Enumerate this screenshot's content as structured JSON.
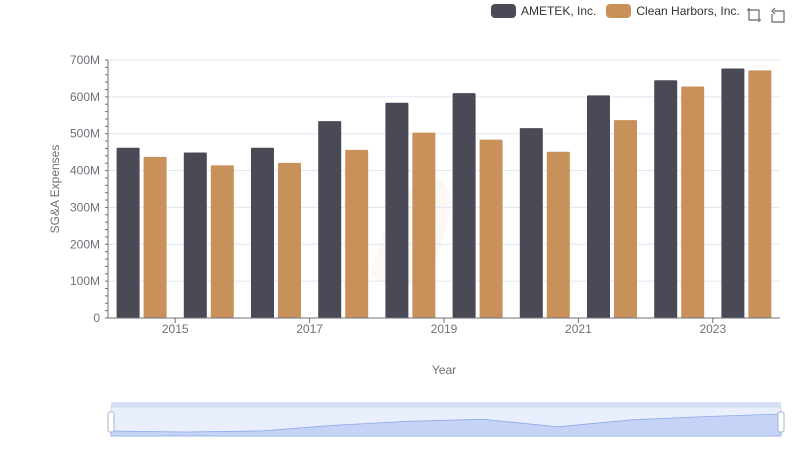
{
  "legend": {
    "items": [
      {
        "label": "AMETEK, Inc.",
        "color": "#4a4a57"
      },
      {
        "label": "Clean Harbors, Inc.",
        "color": "#c8915a"
      }
    ]
  },
  "toolbox": {
    "icons": [
      "zoom-icon",
      "restore-icon"
    ]
  },
  "chart_data": {
    "type": "bar",
    "title": "",
    "xlabel": "Year",
    "ylabel": "SG&A Expenses",
    "categories": [
      "2014",
      "2015",
      "2016",
      "2017",
      "2018",
      "2019",
      "2020",
      "2021",
      "2022",
      "2023"
    ],
    "x_tick_labels": [
      "2015",
      "2017",
      "2019",
      "2021",
      "2023"
    ],
    "y_tick_labels": [
      "0",
      "100M",
      "200M",
      "300M",
      "400M",
      "500M",
      "600M",
      "700M"
    ],
    "ylim": [
      0,
      700000000
    ],
    "legend_position": "top-right",
    "grid": true,
    "series": [
      {
        "name": "AMETEK, Inc.",
        "color": "#4a4a57",
        "values": [
          462000000,
          449000000,
          462000000,
          534000000,
          584000000,
          610000000,
          515000000,
          604000000,
          645000000,
          677000000
        ]
      },
      {
        "name": "Clean Harbors, Inc.",
        "color": "#c8915a",
        "values": [
          437000000,
          414000000,
          421000000,
          456000000,
          503000000,
          484000000,
          451000000,
          537000000,
          628000000,
          672000000
        ]
      }
    ]
  },
  "data_zoom": {
    "range_start_percent": 0,
    "range_end_percent": 100
  }
}
